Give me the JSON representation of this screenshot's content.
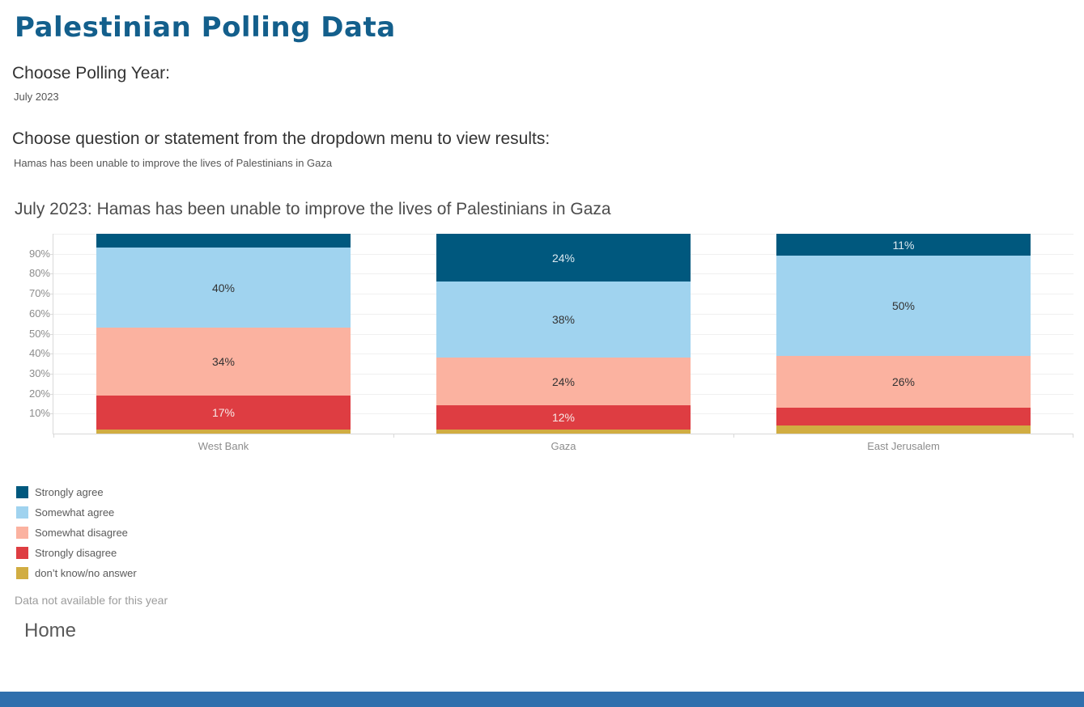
{
  "page": {
    "title": "Palestinian Polling Data",
    "title_color": "#135f8c",
    "bottom_bar_color": "#2f6fad"
  },
  "parameters": {
    "year_label": "Choose Polling Year:",
    "year_value": "July 2023",
    "question_label": "Choose question or statement from the dropdown menu to view results:",
    "question_value": "Hamas has been unable to improve the lives of Palestinians in Gaza"
  },
  "chart_data": {
    "type": "bar",
    "subtype": "stacked-percentage-columns",
    "title": "July 2023: Hamas has been unable to improve the lives of Palestinians in Gaza",
    "categories": [
      "West Bank",
      "Gaza",
      "East Jerusalem"
    ],
    "series": [
      {
        "name": "Strongly agree",
        "color": "#00587e",
        "label_color": "#dce9f0",
        "values": [
          7,
          24,
          11
        ],
        "shown_labels": [
          "",
          "24%",
          "11%"
        ]
      },
      {
        "name": "Somewhat agree",
        "color": "#a0d3ef",
        "label_color": "#333333",
        "values": [
          40,
          38,
          50
        ],
        "shown_labels": [
          "40%",
          "38%",
          "50%"
        ]
      },
      {
        "name": "Somewhat disagree",
        "color": "#fbb2a0",
        "label_color": "#333333",
        "values": [
          34,
          24,
          26
        ],
        "shown_labels": [
          "34%",
          "24%",
          "26%"
        ]
      },
      {
        "name": "Strongly disagree",
        "color": "#de3d42",
        "label_color": "#f8e9e7",
        "values": [
          17,
          12,
          9
        ],
        "shown_labels": [
          "17%",
          "12%",
          ""
        ]
      },
      {
        "name": "don’t know/no answer",
        "color": "#d1ad42",
        "label_color": "#333333",
        "values": [
          2,
          2,
          4
        ],
        "shown_labels": [
          "",
          "",
          ""
        ]
      }
    ],
    "stack_order_bottom_to_top": [
      "don’t know/no answer",
      "Strongly disagree",
      "Somewhat disagree",
      "Somewhat agree",
      "Strongly agree"
    ],
    "xlabel": "",
    "ylabel": "",
    "ylim": [
      0,
      100
    ],
    "y_ticks": [
      "10%",
      "20%",
      "30%",
      "40%",
      "50%",
      "60%",
      "70%",
      "80%",
      "90%"
    ],
    "grid": true,
    "legend_position": "bottom-left"
  },
  "footer": {
    "note": "Data not available for this year",
    "home_label": "Home"
  }
}
